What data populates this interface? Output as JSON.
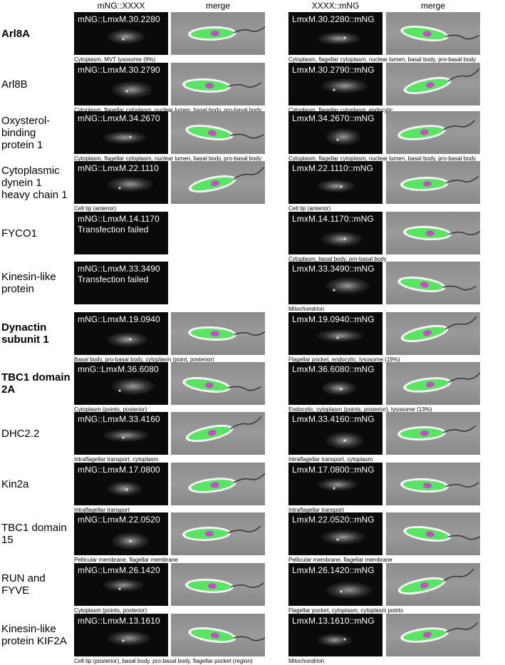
{
  "headers": {
    "left_fluor": "mNG::XXXX",
    "left_merge": "merge",
    "right_fluor": "XXXX::mNG",
    "right_merge": "merge"
  },
  "rows": [
    {
      "gene": "Arl8A",
      "bold": true,
      "n_label": "mNG::LmxM.30.2280",
      "n_caption": "Cytoplasm, MVT lysosome (9%)",
      "c_label": "LmxM.30.2280::mNG",
      "c_caption": "Cytoplasm, flagellar cytoplasm, nuclear lumen, basal body, pro-basal body"
    },
    {
      "gene": "Arl8B",
      "bold": false,
      "n_label": "mNG::LmxM.30.2790",
      "n_caption": "Cytoplasm, flagellar cytoplasm, nuclear lumen, basal body, pro-basal body",
      "c_label": "LmxM.30.2790::mNG",
      "c_caption": "Cytoplasm, flagellar cytoplasm, endocytic"
    },
    {
      "gene": "Oxysterol-binding protein 1",
      "bold": false,
      "n_label": "mNG::LmxM.34.2670",
      "n_caption": "Cytoplasm, flagellar cytoplasm, nuclear lumen, basal body, pro-basal body",
      "c_label": "LmxM.34.2670::mNG",
      "c_caption": "Cytoplasm, flagellar cytoplasm, nuclear lumen, basal body, pro-basal body"
    },
    {
      "gene": "Cytoplasmic dynein 1 heavy chain 1",
      "bold": false,
      "n_label": "mNG::LmxM.22.1110",
      "n_caption": "Cell tip (anterior)",
      "c_label": "LmxM.22.1110::mNG",
      "c_caption": "Cell tip (anterior)"
    },
    {
      "gene": "FYCO1",
      "bold": false,
      "n_label": "mNG::LmxM.14.1170\nTransfection failed",
      "n_caption": "",
      "c_label": "LmxM.14.1170::mNG",
      "c_caption": "Cytoplasm, basal body, pro-basal body"
    },
    {
      "gene": "Kinesin-like protein",
      "bold": false,
      "n_label": "mNG::LmxM.33.3490\nTransfection failed",
      "n_caption": "",
      "c_label": "LmxM.33.3490::mNG",
      "c_caption": "Mitochondrion"
    },
    {
      "gene": "Dynactin subunit 1",
      "bold": true,
      "n_label": "mNG::LmxM.19.0940",
      "n_caption": "Basal body, pro-basal body, cytoplasm (point, posterior)",
      "c_label": "LmxM.19.0940::mNG",
      "c_caption": "Flagellar pocket, endocytic, lysosome (19%)"
    },
    {
      "gene": "TBC1 domain 2A",
      "bold": true,
      "n_label": "mnG::LmxM.36.6080",
      "n_caption": "Cytoplasm (points, posterior)",
      "c_label": "LmxM.36.6080::mNG",
      "c_caption": "Endocytic, cytoplasm (points, posterior), lysosome (13%)"
    },
    {
      "gene": "DHC2.2",
      "bold": false,
      "n_label": "mNG::LmxM.33.4160",
      "n_caption": "Intraflagellar transport, cytoplasm",
      "c_label": "LmxM.33.4160::mNG",
      "c_caption": "Intraflagellar transport, cytoplasm"
    },
    {
      "gene": "Kin2a",
      "bold": false,
      "n_label": "mNG::LmxM.17.0800",
      "n_caption": "Intraflagellar transport",
      "c_label": "LmxM.17.0800::mNG",
      "c_caption": "Intraflagellar transport"
    },
    {
      "gene": "TBC1 domain 15",
      "bold": false,
      "n_label": "mNG::LmxM.22.0520",
      "n_caption": "Pellicular membrane, flagellar membrane",
      "c_label": "LmxM.22.0520::mNG",
      "c_caption": "Pellicular membrane, flagellar membrane"
    },
    {
      "gene": "RUN and FYVE",
      "bold": false,
      "n_label": "mNG::LmxM.26.1420",
      "n_caption": "Cytoplasm (points, posterior)",
      "c_label": "LmxM.26.1420::mNG",
      "c_caption": "Flagellar pocket, cytoplasm, cytoplasm points"
    },
    {
      "gene": "Kinesin-like protein KIF2A",
      "bold": false,
      "n_label": "mNG::LmxM.13.1610",
      "n_caption": "Cell tip (posterior), basal body, pro-basal body, flagellar pocket (region)",
      "c_label": "LmxM.13.1610::mNG",
      "c_caption": "Mitochondrion"
    }
  ],
  "colors": {
    "fluor_background": "#0a0a0a",
    "merge_background": "#909090",
    "green_channel": "#3ee04a",
    "magenta_channel": "#d23cd2",
    "label_text": "#ffffff"
  }
}
